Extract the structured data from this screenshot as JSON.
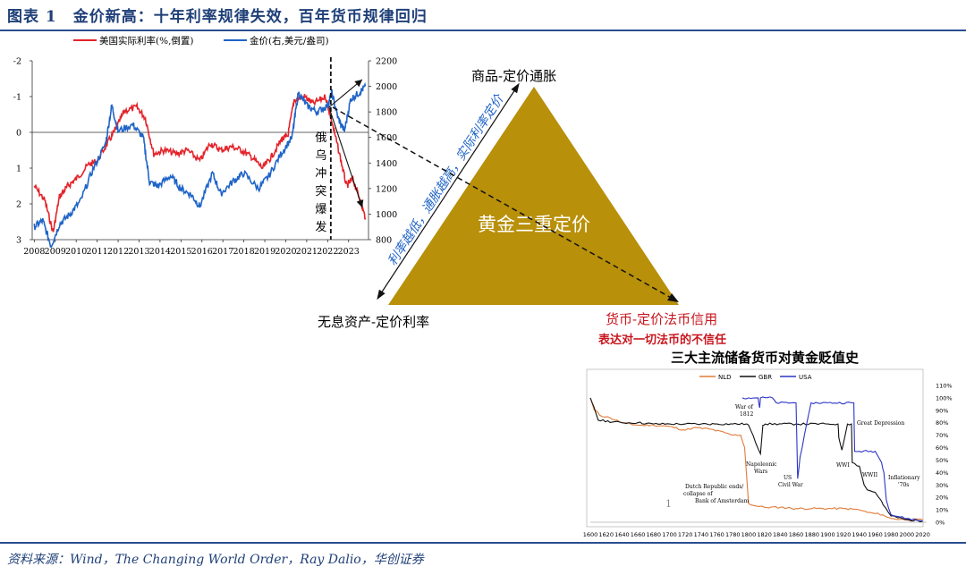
{
  "header": {
    "title": "图表 1　金价新高：十年利率规律失效，百年货币规律回归"
  },
  "source": "资料来源：Wind，The Changing World Order，Ray Dalio，华创证券",
  "colors": {
    "real_rate": "#e4232a",
    "gold": "#1f64c8",
    "triangle": "#b8900a",
    "title_blue": "#1f3f78",
    "nld": "#e07b39",
    "gbr": "#111111",
    "usa": "#2b35c8"
  },
  "chart_data": [
    {
      "type": "line",
      "legend": [
        "美国实际利率(%,倒置)",
        "金价(右,美元/盎司)"
      ],
      "x_ticks": [
        "2008",
        "2009",
        "2010",
        "2011",
        "2012",
        "2013",
        "2014",
        "2015",
        "2016",
        "2017",
        "2018",
        "2019",
        "2020",
        "2021",
        "2022",
        "2023"
      ],
      "y_left_ticks": [
        "-2",
        "-1",
        "0",
        "1",
        "2",
        "3"
      ],
      "y_left_lim": [
        -2,
        3
      ],
      "y_left_inverted": true,
      "y_right_ticks": [
        "2200",
        "2000",
        "1800",
        "1600",
        "1400",
        "1200",
        "1000",
        "800"
      ],
      "y_right_lim": [
        800,
        2200
      ],
      "vline": {
        "x": 2022.15,
        "label": "俄乌冲突爆发"
      },
      "series": [
        {
          "name": "美国实际利率(%,倒置)",
          "axis": "left",
          "x": [
            2008.0,
            2008.5,
            2008.9,
            2009.2,
            2009.6,
            2010.0,
            2010.6,
            2011.0,
            2011.5,
            2011.9,
            2012.3,
            2012.9,
            2013.3,
            2013.7,
            2014.2,
            2014.8,
            2015.3,
            2015.9,
            2016.4,
            2016.9,
            2017.4,
            2017.9,
            2018.4,
            2018.9,
            2019.3,
            2019.8,
            2020.1,
            2020.4,
            2020.9,
            2021.3,
            2021.9,
            2022.2,
            2022.6,
            2022.9,
            2023.2,
            2023.5,
            2023.8
          ],
          "y": [
            1.5,
            1.9,
            2.8,
            1.8,
            1.5,
            1.3,
            0.9,
            0.8,
            0.3,
            -0.1,
            -0.6,
            -0.7,
            -0.4,
            0.6,
            0.5,
            0.6,
            0.5,
            0.8,
            0.3,
            0.5,
            0.4,
            0.5,
            0.7,
            1.0,
            0.7,
            0.2,
            0.1,
            -0.9,
            -1.0,
            -0.8,
            -1.0,
            -0.3,
            0.7,
            1.5,
            1.3,
            1.8,
            2.4
          ]
        },
        {
          "name": "金价(右,美元/盎司)",
          "axis": "right",
          "x": [
            2008.0,
            2008.4,
            2008.8,
            2009.2,
            2009.7,
            2010.2,
            2010.8,
            2011.4,
            2011.7,
            2012.0,
            2012.7,
            2013.2,
            2013.5,
            2013.9,
            2014.5,
            2015.0,
            2015.5,
            2015.9,
            2016.5,
            2016.9,
            2017.5,
            2018.0,
            2018.7,
            2019.2,
            2019.8,
            2020.3,
            2020.6,
            2021.0,
            2021.5,
            2022.0,
            2022.2,
            2022.5,
            2022.8,
            2023.1,
            2023.5,
            2023.8
          ],
          "y": [
            900,
            950,
            750,
            920,
            1000,
            1100,
            1350,
            1550,
            1850,
            1650,
            1700,
            1600,
            1250,
            1220,
            1300,
            1200,
            1150,
            1060,
            1320,
            1160,
            1260,
            1320,
            1200,
            1300,
            1480,
            1600,
            1950,
            1850,
            1800,
            1850,
            1950,
            1750,
            1650,
            1900,
            1950,
            2000
          ]
        }
      ]
    },
    {
      "type": "line",
      "title": "三大主流储备货币对黄金贬值史",
      "legend": [
        "NLD",
        "GBR",
        "USA"
      ],
      "x_ticks": [
        "1600",
        "1620",
        "1640",
        "1660",
        "1680",
        "1700",
        "1720",
        "1740",
        "1760",
        "1780",
        "1800",
        "1820",
        "1840",
        "1860",
        "1880",
        "1900",
        "1920",
        "1940",
        "1960",
        "1980",
        "2000",
        "2020"
      ],
      "y_ticks": [
        "0%",
        "10%",
        "20%",
        "30%",
        "40%",
        "50%",
        "60%",
        "70%",
        "80%",
        "90%",
        "100%",
        "110%"
      ],
      "ylim": [
        0,
        110
      ],
      "annotations": [
        "War of 1812",
        "Great Depression",
        "Napoleonic Wars",
        "US Civil War",
        "WWI",
        "WWII",
        "Inflationary '70s",
        "Dutch Republic ends/ collapse of Bank of Amsterdam",
        "1"
      ],
      "series": [
        {
          "name": "NLD",
          "x": [
            1600,
            1605,
            1610,
            1612,
            1625,
            1640,
            1660,
            1680,
            1700,
            1720,
            1730,
            1750,
            1770,
            1780,
            1790,
            1795,
            1800,
            1810,
            1820,
            1840,
            1860,
            1880,
            1900,
            1920,
            1940,
            1950,
            1960,
            1970,
            1975,
            1980,
            2000,
            2020
          ],
          "y": [
            100,
            90,
            88,
            86,
            84,
            80,
            78,
            78,
            77,
            74,
            76,
            75,
            72,
            70,
            70,
            60,
            15,
            13,
            12,
            12,
            11,
            11,
            11,
            11,
            10,
            8,
            7,
            6,
            4,
            3,
            2,
            2
          ]
        },
        {
          "name": "GBR",
          "x": [
            1600,
            1605,
            1610,
            1640,
            1660,
            1680,
            1700,
            1720,
            1740,
            1760,
            1780,
            1797,
            1800,
            1815,
            1818,
            1821,
            1860,
            1900,
            1913,
            1914,
            1918,
            1925,
            1930,
            1931,
            1940,
            1946,
            1950,
            1960,
            1967,
            1970,
            1980,
            2000,
            2020
          ],
          "y": [
            100,
            92,
            82,
            80,
            80,
            79,
            79,
            79,
            79,
            79,
            79,
            79,
            78,
            55,
            78,
            79,
            79,
            79,
            79,
            68,
            58,
            79,
            79,
            48,
            45,
            30,
            26,
            24,
            18,
            14,
            5,
            2,
            1
          ]
        },
        {
          "name": "USA",
          "x": [
            1792,
            1800,
            1812,
            1814,
            1815,
            1830,
            1835,
            1860,
            1862,
            1865,
            1879,
            1900,
            1933,
            1934,
            1940,
            1960,
            1968,
            1971,
            1974,
            1980,
            2000,
            2020
          ],
          "y": [
            100,
            100,
            100,
            92,
            100,
            100,
            96,
            96,
            35,
            52,
            96,
            96,
            96,
            57,
            57,
            57,
            48,
            40,
            18,
            6,
            3,
            1
          ]
        }
      ]
    }
  ],
  "diagram": {
    "apex_label": "商品-定价通胀",
    "left_label": "无息资产-定价利率",
    "right_label": "货币-定价法币信用",
    "right_sublabel": "表达对一切法币的不信任",
    "center_label": "黄金三重定价",
    "diagonal_label": "利率越低，通胀越高，实际利率定价"
  }
}
